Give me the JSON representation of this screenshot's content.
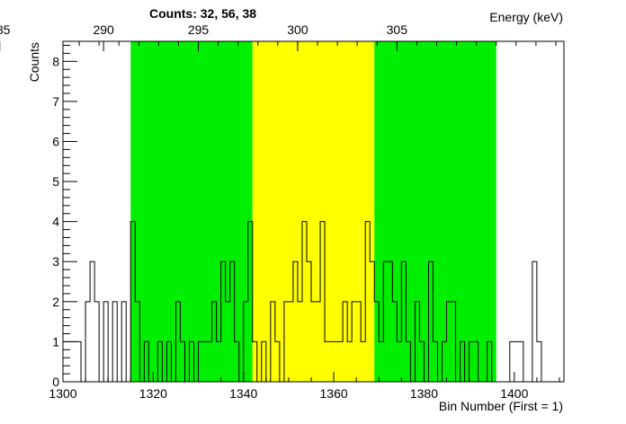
{
  "chart_data": {
    "type": "histogram",
    "title": "Counts:   32,   56,   38",
    "xlabel": "Bin Number (First = 1)",
    "ylabel": "Counts",
    "x2label": "Energy (keV)",
    "xlim": [
      1300,
      1411
    ],
    "ylim": [
      0,
      8.5
    ],
    "x_ticks": [
      "1300",
      "1320",
      "1340",
      "1360",
      "1380",
      "1400"
    ],
    "y_ticks": [
      "0",
      "1",
      "2",
      "3",
      "4",
      "5",
      "6",
      "7",
      "8"
    ],
    "energy_ticks": [
      "285",
      "290",
      "295",
      "300",
      "305"
    ],
    "energy_tick_bins": [
      1286,
      1309,
      1330,
      1352,
      1374
    ],
    "regions": [
      {
        "name": "left background",
        "start": 1315,
        "end": 1342,
        "color": "#00ee00",
        "counts": 32
      },
      {
        "name": "peak",
        "start": 1342,
        "end": 1369,
        "color": "#ffff00",
        "counts": 56
      },
      {
        "name": "right background",
        "start": 1369,
        "end": 1396,
        "color": "#00ee00",
        "counts": 38
      }
    ],
    "bin_start": 1300,
    "bin_width": 1,
    "counts": [
      1,
      1,
      1,
      1,
      0,
      2,
      3,
      2,
      0,
      2,
      0,
      2,
      0,
      2,
      0,
      4,
      2,
      0,
      1,
      0,
      0,
      1,
      0,
      1,
      0,
      2,
      1,
      0,
      1,
      0,
      1,
      1,
      1,
      2,
      1,
      3,
      2,
      3,
      1,
      0,
      2,
      4,
      1,
      0,
      1,
      0,
      2,
      1,
      0,
      2,
      0,
      2,
      1,
      3,
      2,
      0,
      2,
      1,
      1,
      1,
      2,
      4,
      1,
      2,
      1,
      3,
      3,
      2,
      1,
      3,
      3,
      2,
      1,
      0,
      1,
      1,
      1,
      5,
      2,
      2,
      3,
      1,
      3,
      2,
      1,
      2,
      3,
      0,
      2,
      1,
      1,
      1,
      0,
      0,
      2,
      1,
      0,
      0,
      0,
      0,
      0,
      0,
      0,
      0,
      0,
      0,
      0,
      0,
      0,
      0,
      0
    ],
    "counts_note": "",
    "histogram_bins": {
      "edges_from": 1300,
      "values": [
        1,
        1,
        1,
        1,
        0,
        2,
        3,
        2,
        0,
        2,
        0,
        2,
        0,
        2,
        0,
        4,
        2,
        0,
        1,
        0,
        0,
        1,
        0,
        1,
        0,
        2,
        1,
        0,
        1,
        0,
        1,
        1,
        1,
        2,
        1,
        3,
        2,
        3,
        1,
        0,
        2,
        4,
        1,
        0,
        1,
        0,
        2,
        1,
        0,
        2,
        2,
        3,
        2,
        4,
        3,
        2,
        2,
        4,
        1,
        1,
        1,
        1,
        2,
        1,
        2,
        2,
        1,
        4,
        3,
        2,
        1,
        3,
        3,
        2,
        1,
        3,
        1,
        0,
        2,
        1,
        0,
        3,
        1,
        0,
        1,
        2,
        2,
        0,
        1,
        0,
        1,
        1,
        0,
        0,
        1,
        0,
        0,
        0,
        0,
        1,
        1,
        1,
        0,
        0,
        3,
        1,
        0,
        0,
        0,
        0,
        0
      ]
    }
  }
}
